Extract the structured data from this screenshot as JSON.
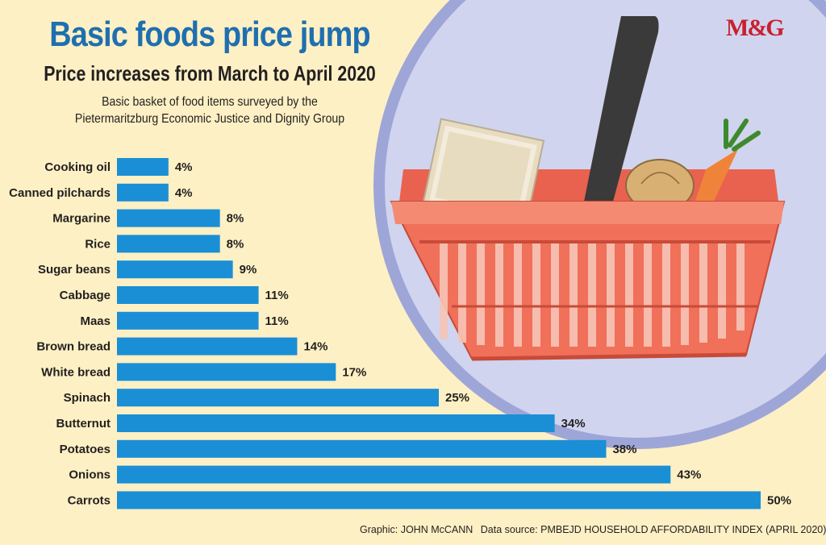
{
  "header": {
    "title": "Basic foods price jump",
    "subtitle": "Price increases from March to April 2020",
    "intro_line1": "Basic basket of food items surveyed by the",
    "intro_line2": "Pietermaritzburg Economic Justice and Dignity Group"
  },
  "logo": {
    "text": "M&G"
  },
  "footer": {
    "graphic_credit": "Graphic: JOHN McCANN",
    "data_source": "Data source: PMBEJD HOUSEHOLD AFFORDABILITY INDEX (APRIL 2020)"
  },
  "colors": {
    "background": "#fdf0c4",
    "bar": "#1a8fd6",
    "title": "#1f6fb0",
    "circle": "#d0d4ee",
    "basket": "#f0705a",
    "logo": "#c8202f"
  },
  "illustration": {
    "icon": "shopping-basket-icon"
  },
  "chart_data": {
    "type": "bar",
    "orientation": "horizontal",
    "categories": [
      "Cooking oil",
      "Canned pilchards",
      "Margarine",
      "Rice",
      "Sugar beans",
      "Cabbage",
      "Maas",
      "Brown bread",
      "White bread",
      "Spinach",
      "Butternut",
      "Potatoes",
      "Onions",
      "Carrots"
    ],
    "values": [
      4,
      4,
      8,
      8,
      9,
      11,
      11,
      14,
      17,
      25,
      34,
      38,
      43,
      50
    ],
    "value_labels": [
      "4%",
      "4%",
      "8%",
      "8%",
      "9%",
      "11%",
      "11%",
      "14%",
      "17%",
      "25%",
      "34%",
      "38%",
      "43%",
      "50%"
    ],
    "unit": "%",
    "xlim": [
      0,
      50
    ],
    "grid": false,
    "legend": "none"
  }
}
